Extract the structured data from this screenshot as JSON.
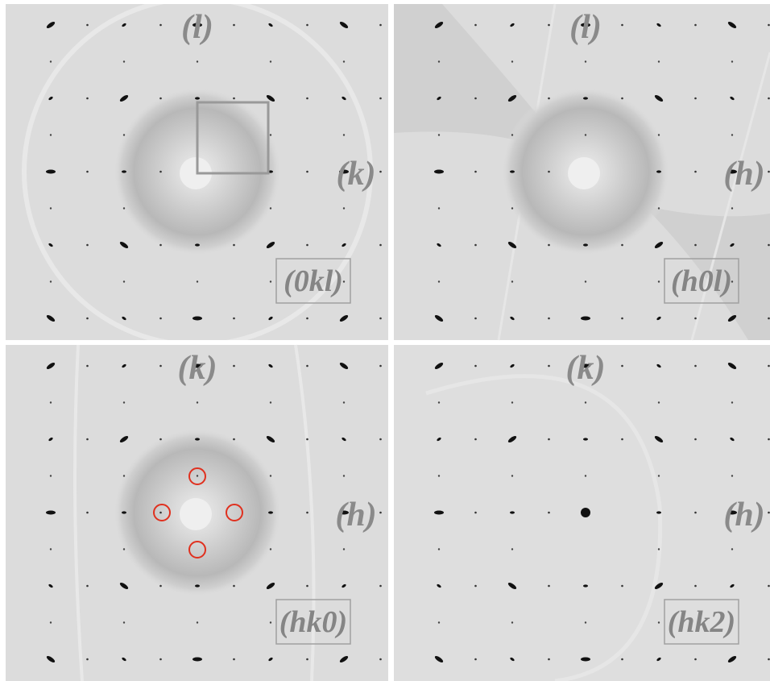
{
  "panels": [
    {
      "axis_top": "(l)",
      "axis_right": "(k)",
      "label": "(0kl)"
    },
    {
      "axis_top": "(l)",
      "axis_right": "(h)",
      "label": "(h0l)"
    },
    {
      "axis_top": "(k)",
      "axis_right": "(h)",
      "label": "(hk0)"
    },
    {
      "axis_top": "(k)",
      "axis_right": "(h)",
      "label": "(hk2)"
    }
  ]
}
